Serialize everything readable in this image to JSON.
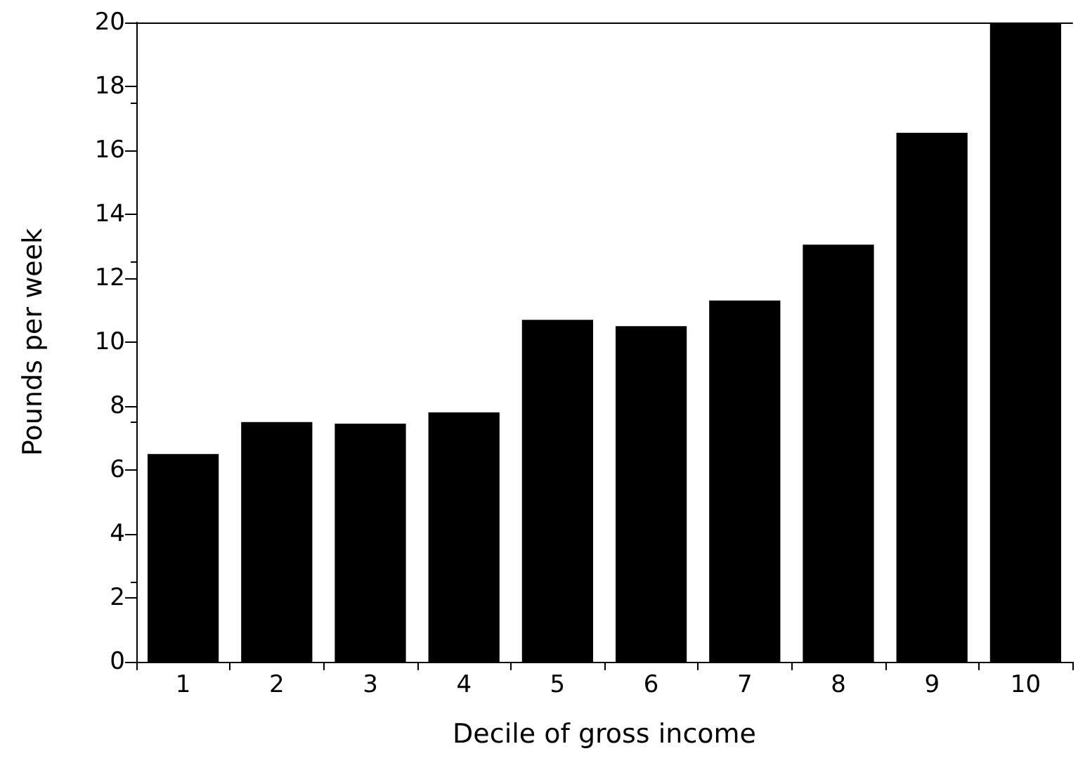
{
  "chart_data": {
    "type": "bar",
    "xlabel": "Decile of gross income",
    "ylabel": "Pounds per week",
    "categories": [
      "1",
      "2",
      "3",
      "4",
      "5",
      "6",
      "7",
      "8",
      "9",
      "10"
    ],
    "values": [
      6.5,
      7.5,
      7.45,
      7.8,
      10.7,
      10.5,
      11.3,
      13.05,
      16.55,
      20
    ],
    "color": "#000000",
    "ylim": [
      0,
      20
    ],
    "yticks": [
      0,
      2,
      4,
      6,
      8,
      10,
      12,
      14,
      16,
      18,
      20
    ],
    "grid": false
  }
}
